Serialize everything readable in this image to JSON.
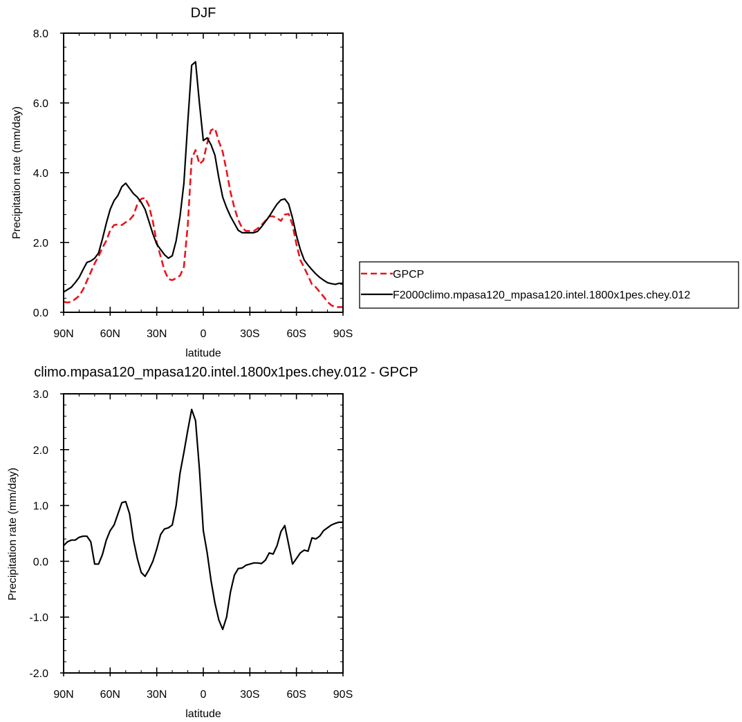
{
  "chart_data": [
    {
      "type": "line",
      "title": "DJF",
      "xlabel": "latitude",
      "ylabel": "Precipitation rate (mm/day)",
      "xlim": [
        90,
        -90
      ],
      "ylim": [
        0,
        8
      ],
      "xticks": [
        90,
        60,
        30,
        0,
        -30,
        -60,
        -90
      ],
      "xtick_labels": [
        "90N",
        "60N",
        "30N",
        "0",
        "30S",
        "60S",
        "90S"
      ],
      "yticks": [
        0,
        2,
        4,
        6,
        8
      ],
      "ytick_labels": [
        "0.0",
        "2.0",
        "4.0",
        "6.0",
        "8.0"
      ],
      "legend": {
        "placement": "right",
        "entries": [
          "GPCP",
          "F2000climo.mpasa120_mpasa120.intel.1800x1pes.chey.012"
        ]
      },
      "series": [
        {
          "name": "GPCP",
          "color": "#e8141c",
          "dash": "dashed",
          "x": [
            90,
            87.5,
            85,
            82.5,
            80,
            77.5,
            75,
            72.5,
            70,
            67.5,
            65,
            62.5,
            60,
            57.5,
            55,
            52.5,
            50,
            47.5,
            45,
            42.5,
            40,
            37.5,
            35,
            32.5,
            30,
            27.5,
            25,
            22.5,
            20,
            17.5,
            15,
            12.5,
            10,
            7.5,
            5,
            2.5,
            0,
            -2.5,
            -5,
            -7.5,
            -10,
            -12.5,
            -15,
            -17.5,
            -20,
            -22.5,
            -25,
            -27.5,
            -30,
            -32.5,
            -35,
            -37.5,
            -40,
            -42.5,
            -45,
            -47.5,
            -50,
            -52.5,
            -55,
            -57.5,
            -60,
            -62.5,
            -65,
            -67.5,
            -70,
            -72.5,
            -75,
            -77.5,
            -80,
            -82.5,
            -85,
            -87.5,
            -90
          ],
          "values": [
            0.3,
            0.28,
            0.3,
            0.38,
            0.47,
            0.65,
            0.9,
            1.15,
            1.4,
            1.6,
            1.85,
            2.05,
            2.35,
            2.5,
            2.52,
            2.5,
            2.58,
            2.65,
            2.78,
            3.1,
            3.25,
            3.28,
            3.05,
            2.6,
            2.0,
            1.6,
            1.2,
            0.95,
            0.92,
            0.98,
            1.05,
            1.3,
            2.5,
            4.4,
            4.65,
            4.25,
            4.35,
            4.85,
            5.22,
            5.27,
            4.9,
            4.6,
            4.05,
            3.45,
            3.0,
            2.65,
            2.42,
            2.33,
            2.33,
            2.33,
            2.4,
            2.5,
            2.62,
            2.75,
            2.75,
            2.7,
            2.62,
            2.8,
            2.82,
            2.5,
            1.95,
            1.5,
            1.28,
            1.05,
            0.8,
            0.72,
            0.58,
            0.45,
            0.3,
            0.2,
            0.15,
            0.15,
            0.15
          ]
        },
        {
          "name": "F2000climo.mpasa120_mpasa120.intel.1800x1pes.chey.012",
          "color": "#000000",
          "dash": "solid",
          "x": [
            90,
            87.5,
            85,
            82.5,
            80,
            77.5,
            75,
            72.5,
            70,
            67.5,
            65,
            62.5,
            60,
            57.5,
            55,
            52.5,
            50,
            47.5,
            45,
            42.5,
            40,
            37.5,
            35,
            32.5,
            30,
            27.5,
            25,
            22.5,
            20,
            17.5,
            15,
            12.5,
            10,
            7.5,
            5,
            2.5,
            0,
            -2.5,
            -5,
            -7.5,
            -10,
            -12.5,
            -15,
            -17.5,
            -20,
            -22.5,
            -25,
            -27.5,
            -30,
            -32.5,
            -35,
            -37.5,
            -40,
            -42.5,
            -45,
            -47.5,
            -50,
            -52.5,
            -55,
            -57.5,
            -60,
            -62.5,
            -65,
            -67.5,
            -70,
            -72.5,
            -75,
            -77.5,
            -80,
            -82.5,
            -85,
            -87.5,
            -90
          ],
          "values": [
            0.58,
            0.65,
            0.72,
            0.85,
            1.0,
            1.22,
            1.43,
            1.47,
            1.55,
            1.7,
            2.1,
            2.55,
            2.95,
            3.2,
            3.35,
            3.6,
            3.7,
            3.55,
            3.4,
            3.3,
            3.15,
            2.95,
            2.6,
            2.25,
            1.95,
            1.8,
            1.65,
            1.55,
            1.62,
            2.05,
            2.75,
            3.7,
            5.45,
            7.08,
            7.18,
            6.0,
            4.92,
            5.0,
            4.8,
            4.5,
            3.85,
            3.3,
            3.0,
            2.75,
            2.55,
            2.35,
            2.28,
            2.28,
            2.28,
            2.28,
            2.32,
            2.45,
            2.6,
            2.75,
            2.93,
            3.1,
            3.22,
            3.25,
            3.1,
            2.7,
            2.2,
            1.8,
            1.5,
            1.35,
            1.22,
            1.1,
            1.0,
            0.92,
            0.85,
            0.82,
            0.8,
            0.83,
            0.83
          ]
        }
      ]
    },
    {
      "type": "line",
      "title": "climo.mpasa120_mpasa120.intel.1800x1pes.chey.012 - GPCP",
      "xlabel": "latitude",
      "ylabel": "Precipitation rate (mm/day)",
      "xlim": [
        90,
        -90
      ],
      "ylim": [
        -2,
        3
      ],
      "xticks": [
        90,
        60,
        30,
        0,
        -30,
        -60,
        -90
      ],
      "xtick_labels": [
        "90N",
        "60N",
        "30N",
        "0",
        "30S",
        "60S",
        "90S"
      ],
      "yticks": [
        -2,
        -1,
        0,
        1,
        2,
        3
      ],
      "ytick_labels": [
        "-2.0",
        "-1.0",
        "0.0",
        "1.0",
        "2.0",
        "3.0"
      ],
      "series": [
        {
          "color": "#000000",
          "dash": "solid",
          "x": [
            90,
            87.5,
            85,
            82.5,
            80,
            77.5,
            75,
            72.5,
            70,
            67.5,
            65,
            62.5,
            60,
            57.5,
            55,
            52.5,
            50,
            47.5,
            45,
            42.5,
            40,
            37.5,
            35,
            32.5,
            30,
            27.5,
            25,
            22.5,
            20,
            17.5,
            15,
            12.5,
            10,
            7.5,
            5,
            2.5,
            0,
            -2.5,
            -5,
            -7.5,
            -10,
            -12.5,
            -15,
            -17.5,
            -20,
            -22.5,
            -25,
            -27.5,
            -30,
            -32.5,
            -35,
            -37.5,
            -40,
            -42.5,
            -45,
            -47.5,
            -50,
            -52.5,
            -55,
            -57.5,
            -60,
            -62.5,
            -65,
            -67.5,
            -70,
            -72.5,
            -75,
            -77.5,
            -80,
            -82.5,
            -85,
            -87.5,
            -90
          ],
          "values": [
            0.28,
            0.35,
            0.38,
            0.38,
            0.43,
            0.45,
            0.45,
            0.35,
            -0.05,
            -0.05,
            0.12,
            0.38,
            0.55,
            0.65,
            0.85,
            1.05,
            1.07,
            0.85,
            0.38,
            0.05,
            -0.2,
            -0.27,
            -0.15,
            0.0,
            0.22,
            0.48,
            0.58,
            0.6,
            0.65,
            1.0,
            1.58,
            1.95,
            2.35,
            2.72,
            2.52,
            1.65,
            0.55,
            0.15,
            -0.35,
            -0.75,
            -1.05,
            -1.22,
            -1.0,
            -0.55,
            -0.25,
            -0.13,
            -0.12,
            -0.07,
            -0.05,
            -0.03,
            -0.03,
            -0.04,
            0.02,
            0.15,
            0.13,
            0.28,
            0.53,
            0.64,
            0.3,
            -0.05,
            0.05,
            0.15,
            0.2,
            0.18,
            0.42,
            0.4,
            0.45,
            0.55,
            0.6,
            0.65,
            0.68,
            0.7,
            0.7
          ]
        }
      ]
    }
  ]
}
